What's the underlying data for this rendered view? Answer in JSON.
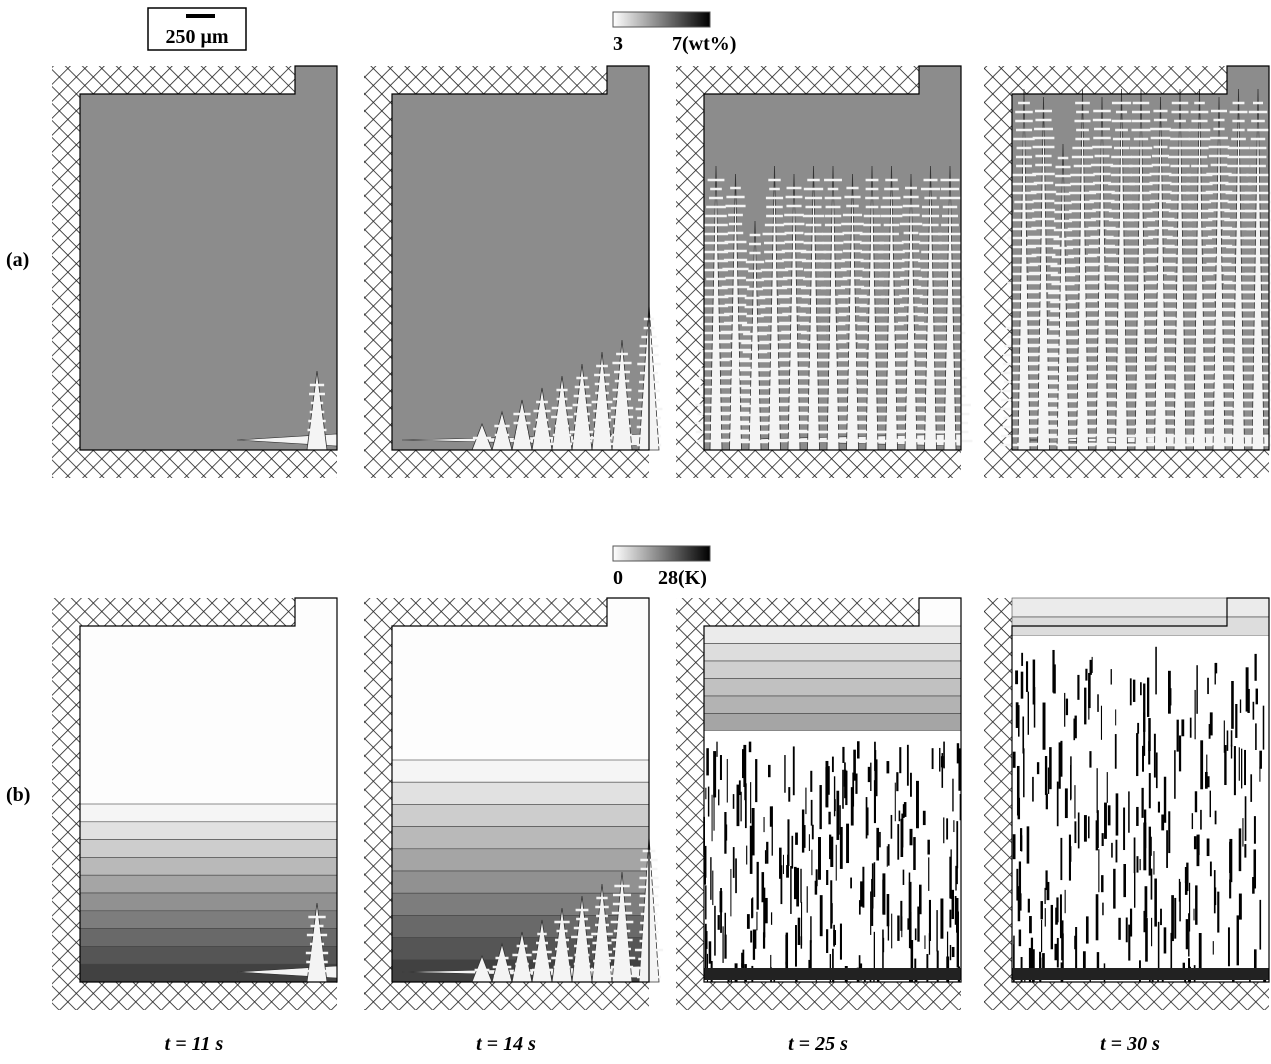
{
  "scale_bar": {
    "label": "250 μm"
  },
  "colorbars": [
    {
      "min_label": "3",
      "max_label": "7(wt%)"
    },
    {
      "min_label": "0",
      "max_label": "28(K)"
    }
  ],
  "rows": [
    {
      "label": "(a)"
    },
    {
      "label": "(b)"
    }
  ],
  "times": [
    "t = 11 s",
    "t = 14 s",
    "t = 25 s",
    "t = 30 s"
  ]
}
